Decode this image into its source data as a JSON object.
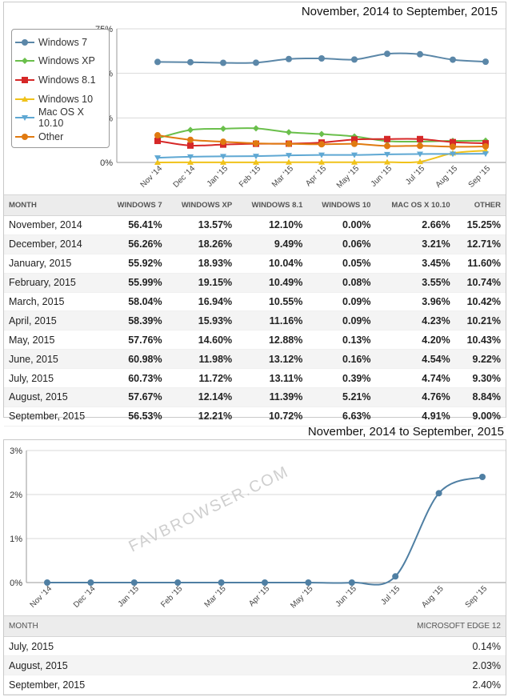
{
  "colors": {
    "Windows 7": "#5b87a8",
    "Windows XP": "#6abf4b",
    "Windows 8.1": "#d62828",
    "Windows 10": "#f0c21a",
    "Mac OS X 10.10": "#5fa8d3",
    "Other": "#e07a10",
    "Microsoft Edge 12": "#4f7fa3"
  },
  "legend_markers": {
    "Windows 7": "circle",
    "Windows XP": "diamond",
    "Windows 8.1": "square",
    "Windows 10": "triangle-up",
    "Mac OS X 10.10": "triangle-down",
    "Other": "circle"
  },
  "watermark": "FAVBROWSER.COM",
  "chart_data": [
    {
      "type": "line",
      "title": "November, 2014 to September, 2015",
      "categories": [
        "Nov '14",
        "Dec '14",
        "Jan '15",
        "Feb '15",
        "Mar '15",
        "Apr '15",
        "May '15",
        "Jun '15",
        "Jul '15",
        "Aug '15",
        "Sep '15"
      ],
      "ylim": [
        0,
        75
      ],
      "yticks": [
        "0%",
        "25%",
        "50%",
        "75%"
      ],
      "ytick_values": [
        0,
        25,
        50,
        75
      ],
      "grid": true,
      "legend": "top-left",
      "series": [
        {
          "name": "Windows 7",
          "values": [
            56.41,
            56.26,
            55.92,
            55.99,
            58.04,
            58.39,
            57.76,
            60.98,
            60.73,
            57.67,
            56.53
          ]
        },
        {
          "name": "Windows XP",
          "values": [
            13.57,
            18.26,
            18.93,
            19.15,
            16.94,
            15.93,
            14.6,
            11.98,
            11.72,
            12.14,
            12.21
          ]
        },
        {
          "name": "Windows 8.1",
          "values": [
            12.1,
            9.49,
            10.04,
            10.49,
            10.55,
            11.16,
            12.88,
            13.12,
            13.11,
            11.39,
            10.72
          ]
        },
        {
          "name": "Windows 10",
          "values": [
            0.0,
            0.06,
            0.05,
            0.08,
            0.09,
            0.09,
            0.13,
            0.16,
            0.39,
            5.21,
            6.63
          ]
        },
        {
          "name": "Mac OS X 10.10",
          "values": [
            2.66,
            3.21,
            3.45,
            3.55,
            3.96,
            4.23,
            4.2,
            4.54,
            4.74,
            4.76,
            4.91
          ]
        },
        {
          "name": "Other",
          "values": [
            15.25,
            12.71,
            11.6,
            10.74,
            10.42,
            10.21,
            10.43,
            9.22,
            9.3,
            8.84,
            9.0
          ]
        }
      ]
    },
    {
      "type": "line",
      "title": "November, 2014 to September, 2015",
      "categories": [
        "Nov '14",
        "Dec '14",
        "Jan '15",
        "Feb '15",
        "Mar '15",
        "Apr '15",
        "May '15",
        "Jun '15",
        "Jul '15",
        "Aug '15",
        "Sep '15"
      ],
      "ylim": [
        0,
        3
      ],
      "yticks": [
        "0%",
        "1%",
        "2%",
        "3%"
      ],
      "ytick_values": [
        0,
        1,
        2,
        3
      ],
      "grid": true,
      "series": [
        {
          "name": "Microsoft Edge 12",
          "values": [
            0,
            0,
            0,
            0,
            0,
            0,
            0,
            0,
            0.14,
            2.03,
            2.4
          ]
        }
      ]
    }
  ],
  "table1": {
    "headers": [
      "MONTH",
      "WINDOWS 7",
      "WINDOWS XP",
      "WINDOWS 8.1",
      "WINDOWS 10",
      "MAC OS X 10.10",
      "OTHER"
    ],
    "rows": [
      [
        "November, 2014",
        "56.41%",
        "13.57%",
        "12.10%",
        "0.00%",
        "2.66%",
        "15.25%"
      ],
      [
        "December, 2014",
        "56.26%",
        "18.26%",
        "9.49%",
        "0.06%",
        "3.21%",
        "12.71%"
      ],
      [
        "January, 2015",
        "55.92%",
        "18.93%",
        "10.04%",
        "0.05%",
        "3.45%",
        "11.60%"
      ],
      [
        "February, 2015",
        "55.99%",
        "19.15%",
        "10.49%",
        "0.08%",
        "3.55%",
        "10.74%"
      ],
      [
        "March, 2015",
        "58.04%",
        "16.94%",
        "10.55%",
        "0.09%",
        "3.96%",
        "10.42%"
      ],
      [
        "April, 2015",
        "58.39%",
        "15.93%",
        "11.16%",
        "0.09%",
        "4.23%",
        "10.21%"
      ],
      [
        "May, 2015",
        "57.76%",
        "14.60%",
        "12.88%",
        "0.13%",
        "4.20%",
        "10.43%"
      ],
      [
        "June, 2015",
        "60.98%",
        "11.98%",
        "13.12%",
        "0.16%",
        "4.54%",
        "9.22%"
      ],
      [
        "July, 2015",
        "60.73%",
        "11.72%",
        "13.11%",
        "0.39%",
        "4.74%",
        "9.30%"
      ],
      [
        "August, 2015",
        "57.67%",
        "12.14%",
        "11.39%",
        "5.21%",
        "4.76%",
        "8.84%"
      ],
      [
        "September, 2015",
        "56.53%",
        "12.21%",
        "10.72%",
        "6.63%",
        "4.91%",
        "9.00%"
      ]
    ]
  },
  "table2": {
    "headers": [
      "MONTH",
      "MICROSOFT EDGE 12"
    ],
    "rows": [
      [
        "July, 2015",
        "0.14%"
      ],
      [
        "August, 2015",
        "2.03%"
      ],
      [
        "September, 2015",
        "2.40%"
      ]
    ]
  }
}
